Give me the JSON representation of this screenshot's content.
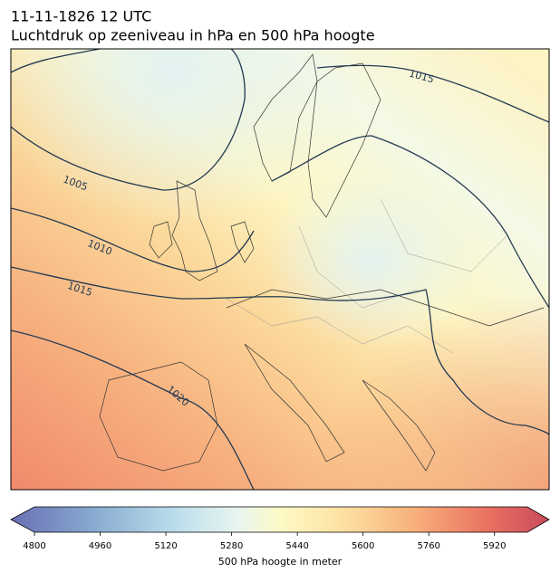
{
  "header": {
    "title": "11-11-1826 12 UTC",
    "subtitle": "Luchtdruk op zeeniveau in hPa en 500 hPa hoogte"
  },
  "map": {
    "contour_labels": [
      1005,
      1010,
      1015,
      1020,
      1015
    ]
  },
  "colorbar": {
    "label": "500 hPa hoogte in meter",
    "lim": [
      4800,
      6000
    ],
    "ticks": [
      4800,
      4960,
      5120,
      5280,
      5440,
      5600,
      5760,
      5920
    ]
  }
}
